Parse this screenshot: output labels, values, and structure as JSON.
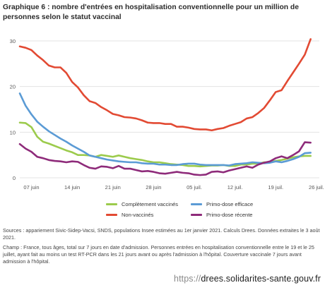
{
  "figure": {
    "title": "Graphique 6 : nombre d'entrées en hospitalisation conventionnelle pour un million de personnes selon le statut vaccinal",
    "sources": "Sources : appariement Sivic-Sidep-Vacsi, SNDS, populations Insee estimées au 1er janvier 2021. Calculs Drees. Données extraites le 3 août 2021.",
    "champ": "Champ : France, tous âges, total sur 7 jours en date d'admission. Personnes entrées en hospitalisation conventionnelle entre le 19 et le 25 juillet, ayant fait au moins un test RT-PCR dans les 21 jours avant ou après l'admission à l'hôpital. Couverture vaccinale 7 jours avant admission à l'hôpital.",
    "website": {
      "prefix": "https://",
      "domain": "drees.solidarites-sante.gouv.fr"
    }
  },
  "chart_data": {
    "type": "line",
    "title": "",
    "xlabel": "",
    "ylabel": "",
    "ylim": [
      0,
      30
    ],
    "yticks": [
      0,
      10,
      20,
      30
    ],
    "grid": true,
    "legend_position": "bottom",
    "x": [
      "06-05",
      "06-06",
      "06-07",
      "06-08",
      "06-09",
      "06-10",
      "06-11",
      "06-12",
      "06-13",
      "06-14",
      "06-15",
      "06-16",
      "06-17",
      "06-18",
      "06-19",
      "06-20",
      "06-21",
      "06-22",
      "06-23",
      "06-24",
      "06-25",
      "06-26",
      "06-27",
      "06-28",
      "06-29",
      "06-30",
      "07-01",
      "07-02",
      "07-03",
      "07-04",
      "07-05",
      "07-06",
      "07-07",
      "07-08",
      "07-09",
      "07-10",
      "07-11",
      "07-12",
      "07-13",
      "07-14",
      "07-15",
      "07-16",
      "07-17",
      "07-18",
      "07-19",
      "07-20",
      "07-21",
      "07-22",
      "07-23",
      "07-24",
      "07-25"
    ],
    "x_tick_labels": [
      "07 juin",
      "14 juin",
      "21 juin",
      "28 juin",
      "05 juil.",
      "12 juil.",
      "19 juil.",
      "26 juil."
    ],
    "x_tick_positions": [
      "06-07",
      "06-14",
      "06-21",
      "06-28",
      "07-05",
      "07-12",
      "07-19",
      "07-26"
    ],
    "series": [
      {
        "name": "Complètement vaccinés",
        "color": "#9ccb4c",
        "values": [
          12.1,
          12.0,
          11.1,
          9.0,
          7.9,
          7.5,
          7.0,
          6.5,
          6.0,
          5.6,
          5.0,
          5.0,
          4.9,
          4.6,
          5.0,
          4.8,
          4.6,
          4.9,
          4.6,
          4.3,
          4.1,
          3.9,
          3.6,
          3.4,
          3.4,
          3.2,
          3.0,
          2.9,
          2.8,
          2.6,
          2.6,
          2.5,
          2.6,
          2.7,
          2.7,
          2.8,
          2.6,
          2.6,
          2.9,
          2.9,
          3.1,
          3.1,
          3.4,
          3.4,
          3.7,
          3.9,
          4.2,
          4.5,
          4.7,
          4.8,
          4.8
        ]
      },
      {
        "name": "Primo-dose efficace",
        "color": "#5b9bd5",
        "values": [
          18.5,
          15.8,
          13.9,
          12.3,
          11.2,
          10.2,
          9.4,
          8.6,
          7.9,
          7.1,
          6.4,
          5.7,
          4.9,
          4.6,
          4.3,
          4.0,
          3.8,
          3.6,
          3.5,
          3.4,
          3.4,
          3.2,
          3.1,
          3.1,
          2.9,
          2.9,
          2.8,
          2.8,
          3.0,
          3.1,
          3.1,
          2.9,
          2.8,
          2.8,
          2.8,
          2.8,
          2.7,
          3.0,
          3.1,
          3.2,
          3.4,
          3.3,
          3.2,
          3.3,
          3.6,
          3.4,
          3.7,
          4.1,
          4.6,
          5.4,
          5.5
        ]
      },
      {
        "name": "Non-vaccinés",
        "color": "#e24a33",
        "values": [
          28.8,
          28.5,
          28.0,
          26.8,
          25.8,
          24.6,
          24.2,
          24.2,
          23.0,
          21.0,
          19.8,
          18.1,
          16.8,
          16.4,
          15.5,
          14.8,
          14.0,
          13.7,
          13.3,
          13.2,
          13.0,
          12.6,
          12.1,
          12.0,
          12.0,
          11.8,
          11.8,
          11.2,
          11.2,
          11.0,
          10.7,
          10.6,
          10.6,
          10.4,
          10.7,
          10.9,
          11.4,
          11.8,
          12.2,
          13.0,
          13.3,
          14.2,
          15.3,
          17.0,
          18.8,
          19.2,
          21.2,
          23.1,
          25.0,
          27.0,
          30.4
        ]
      },
      {
        "name": "Primo-dose récente",
        "color": "#8e2b7a",
        "values": [
          7.4,
          6.4,
          5.7,
          4.6,
          4.3,
          3.9,
          3.7,
          3.6,
          3.4,
          3.6,
          3.5,
          2.8,
          2.2,
          2.0,
          2.5,
          2.4,
          2.1,
          2.6,
          2.0,
          2.0,
          1.7,
          1.4,
          1.5,
          1.3,
          1.0,
          0.9,
          1.1,
          1.3,
          1.1,
          1.0,
          0.7,
          0.6,
          0.7,
          1.3,
          1.4,
          1.2,
          1.6,
          1.9,
          2.2,
          2.5,
          2.2,
          2.9,
          3.3,
          3.6,
          4.3,
          4.7,
          4.3,
          5.0,
          5.8,
          7.8,
          7.7
        ]
      }
    ]
  }
}
